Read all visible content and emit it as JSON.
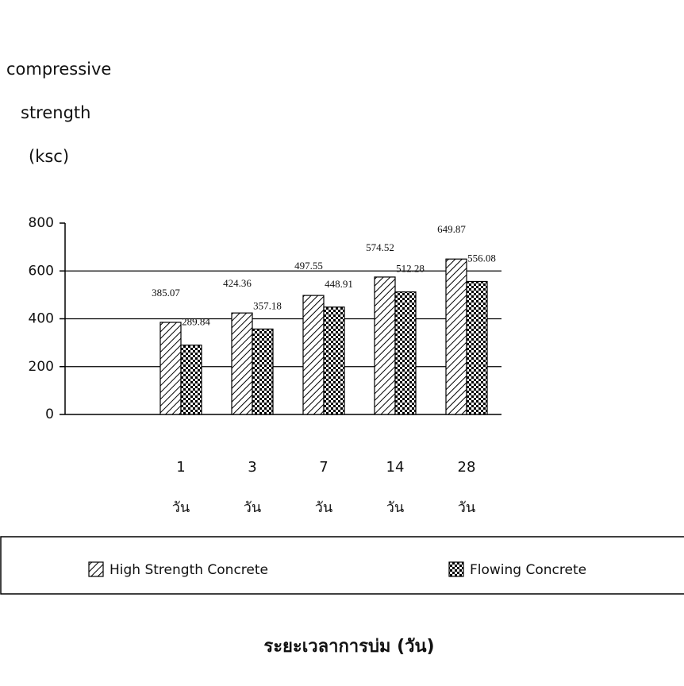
{
  "chart_data": {
    "type": "bar",
    "y_label": [
      "compressive",
      "strength",
      "(ksc)"
    ],
    "x_label": "ระยะเวลาการบ่ม (วัน)",
    "categories": [
      "1",
      "3",
      "7",
      "14",
      "28"
    ],
    "category_unit": "วัน",
    "series": [
      {
        "name": "High Strength Concrete",
        "color": "#000000",
        "values": [
          385.07,
          424.36,
          497.55,
          574.52,
          649.87
        ]
      },
      {
        "name": "Flowing Concrete",
        "color": "#000000",
        "values": [
          289.84,
          357.18,
          448.91,
          512.28,
          556.08
        ]
      }
    ],
    "ylim": [
      0,
      800
    ],
    "yticks": [
      0,
      200,
      400,
      600,
      800
    ],
    "grid": true
  }
}
